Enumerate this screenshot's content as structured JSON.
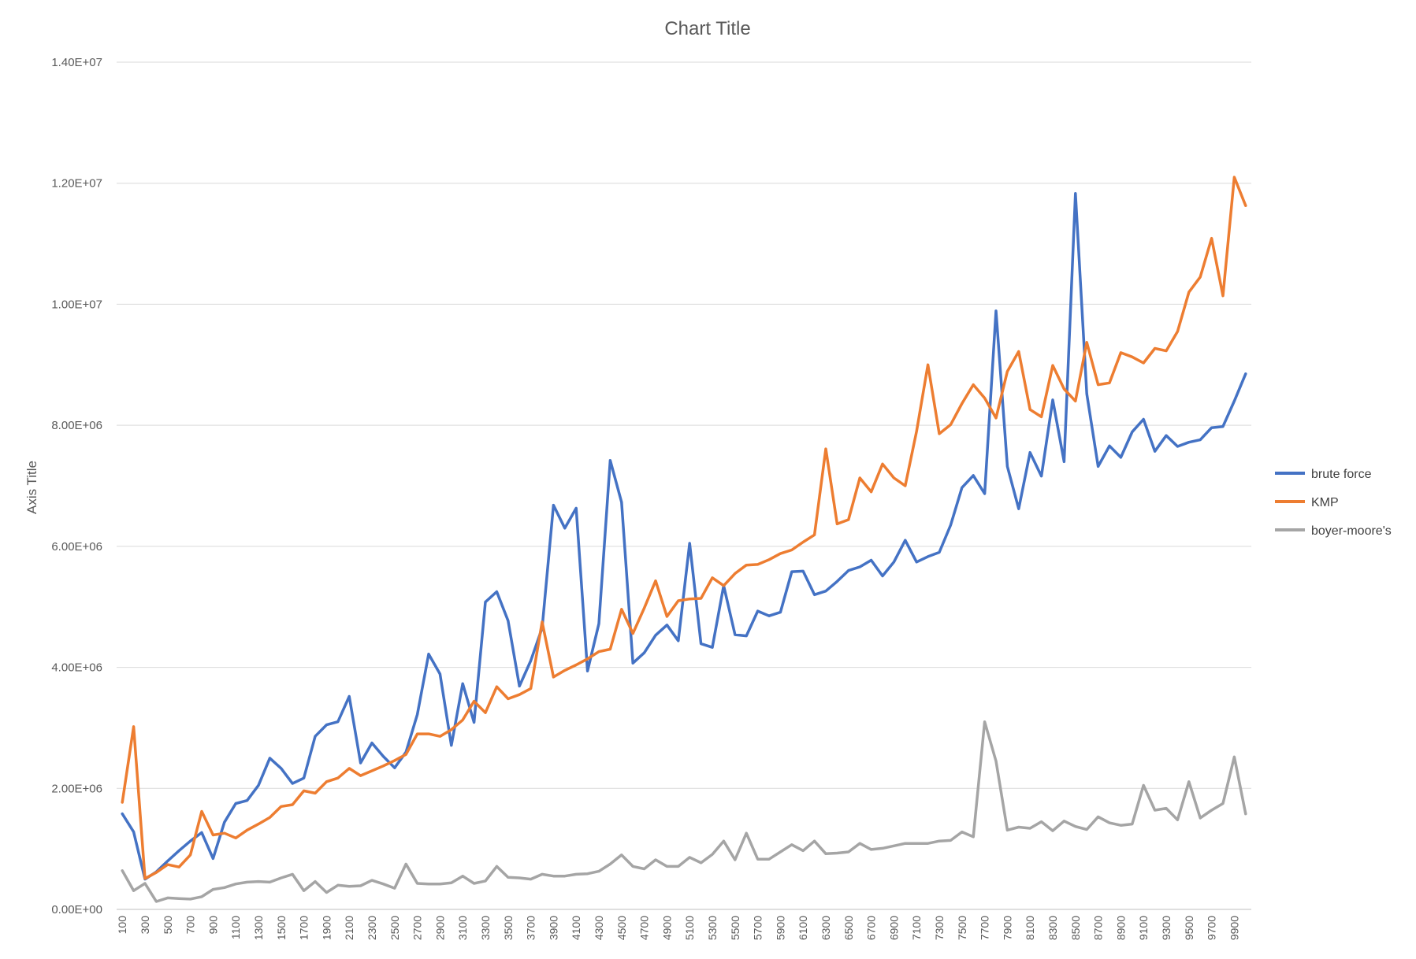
{
  "chart_data": {
    "type": "line",
    "title": "Chart Title",
    "ylabel": "Axis Title",
    "xlabel": "",
    "ylim": [
      0,
      14000000
    ],
    "yticks": [
      "0.00E+00",
      "2.00E+06",
      "4.00E+06",
      "6.00E+06",
      "8.00E+06",
      "1.00E+07",
      "1.20E+07",
      "1.40E+07"
    ],
    "grid": true,
    "legend_position": "right",
    "x": [
      100,
      200,
      300,
      400,
      500,
      600,
      700,
      800,
      900,
      1000,
      1100,
      1200,
      1300,
      1400,
      1500,
      1600,
      1700,
      1800,
      1900,
      2000,
      2100,
      2200,
      2300,
      2400,
      2500,
      2600,
      2700,
      2800,
      2900,
      3000,
      3100,
      3200,
      3300,
      3400,
      3500,
      3600,
      3700,
      3800,
      3900,
      4000,
      4100,
      4200,
      4300,
      4400,
      4500,
      4600,
      4700,
      4800,
      4900,
      5000,
      5100,
      5200,
      5300,
      5400,
      5500,
      5600,
      5700,
      5800,
      5900,
      6000,
      6100,
      6200,
      6300,
      6400,
      6500,
      6600,
      6700,
      6800,
      6900,
      7000,
      7100,
      7200,
      7300,
      7400,
      7500,
      7600,
      7700,
      7800,
      7900,
      8000,
      8100,
      8200,
      8300,
      8400,
      8500,
      8600,
      8700,
      8800,
      8900,
      9000,
      9100,
      9200,
      9300,
      9400,
      9500,
      9600,
      9700,
      9800,
      9900,
      10000
    ],
    "x_tick_labels": [
      "100",
      "300",
      "500",
      "700",
      "900",
      "1100",
      "1300",
      "1500",
      "1700",
      "1900",
      "2100",
      "2300",
      "2500",
      "2700",
      "2900",
      "3100",
      "3300",
      "3500",
      "3700",
      "3900",
      "4100",
      "4300",
      "4500",
      "4700",
      "4900",
      "5100",
      "5300",
      "5500",
      "5700",
      "5900",
      "6100",
      "6300",
      "6500",
      "6700",
      "6900",
      "7100",
      "7300",
      "7500",
      "7700",
      "7900",
      "8100",
      "8300",
      "8500",
      "8700",
      "8900",
      "9100",
      "9300",
      "9500",
      "9700",
      "9900"
    ],
    "series": [
      {
        "name": "brute force",
        "color": "#4472C4",
        "values": [
          1580000,
          1280000,
          500000,
          620000,
          800000,
          970000,
          1130000,
          1270000,
          840000,
          1440000,
          1750000,
          1800000,
          2050000,
          2500000,
          2330000,
          2080000,
          2170000,
          2860000,
          3050000,
          3100000,
          3520000,
          2420000,
          2750000,
          2530000,
          2340000,
          2600000,
          3220000,
          4220000,
          3890000,
          2710000,
          3730000,
          3090000,
          5080000,
          5250000,
          4770000,
          3690000,
          4110000,
          4650000,
          6680000,
          6300000,
          6630000,
          3940000,
          4720000,
          7420000,
          6730000,
          4070000,
          4240000,
          4530000,
          4700000,
          4440000,
          6050000,
          4390000,
          4330000,
          5350000,
          4540000,
          4520000,
          4930000,
          4850000,
          4910000,
          5580000,
          5590000,
          5200000,
          5260000,
          5420000,
          5600000,
          5660000,
          5770000,
          5510000,
          5740000,
          6100000,
          5740000,
          5830000,
          5900000,
          6350000,
          6970000,
          7170000,
          6870000,
          9890000,
          7320000,
          6620000,
          7550000,
          7160000,
          8420000,
          7400000,
          11830000,
          8520000,
          7320000,
          7660000,
          7470000,
          7890000,
          8100000,
          7570000,
          7830000,
          7650000,
          7720000,
          7760000,
          7960000,
          7980000,
          8400000,
          8850000
        ]
      },
      {
        "name": "KMP",
        "color": "#ED7D31",
        "values": [
          1770000,
          3020000,
          510000,
          610000,
          740000,
          700000,
          900000,
          1620000,
          1230000,
          1260000,
          1180000,
          1310000,
          1410000,
          1520000,
          1700000,
          1730000,
          1960000,
          1920000,
          2110000,
          2170000,
          2330000,
          2210000,
          2290000,
          2370000,
          2460000,
          2560000,
          2900000,
          2900000,
          2860000,
          2970000,
          3130000,
          3440000,
          3250000,
          3680000,
          3480000,
          3550000,
          3650000,
          4750000,
          3840000,
          3950000,
          4040000,
          4140000,
          4260000,
          4300000,
          4960000,
          4560000,
          4980000,
          5430000,
          4840000,
          5100000,
          5130000,
          5140000,
          5480000,
          5350000,
          5550000,
          5690000,
          5700000,
          5780000,
          5880000,
          5940000,
          6070000,
          6190000,
          7610000,
          6370000,
          6440000,
          7130000,
          6900000,
          7360000,
          7130000,
          7000000,
          7900000,
          9000000,
          7860000,
          8010000,
          8360000,
          8670000,
          8450000,
          8120000,
          8890000,
          9220000,
          8260000,
          8140000,
          8990000,
          8600000,
          8400000,
          9370000,
          8670000,
          8700000,
          9200000,
          9130000,
          9030000,
          9270000,
          9230000,
          9550000,
          10200000,
          10450000,
          11090000,
          10140000,
          12100000,
          11630000
        ]
      },
      {
        "name": "boyer-moore's",
        "color": "#A5A5A5",
        "values": [
          640000,
          310000,
          430000,
          130000,
          190000,
          180000,
          170000,
          210000,
          330000,
          360000,
          420000,
          450000,
          460000,
          450000,
          520000,
          580000,
          310000,
          460000,
          280000,
          400000,
          380000,
          390000,
          480000,
          420000,
          350000,
          750000,
          430000,
          420000,
          420000,
          440000,
          550000,
          430000,
          470000,
          710000,
          530000,
          520000,
          500000,
          580000,
          550000,
          550000,
          580000,
          590000,
          630000,
          750000,
          900000,
          710000,
          670000,
          820000,
          710000,
          710000,
          860000,
          770000,
          910000,
          1130000,
          820000,
          1260000,
          830000,
          830000,
          950000,
          1070000,
          970000,
          1130000,
          920000,
          930000,
          950000,
          1090000,
          990000,
          1010000,
          1050000,
          1090000,
          1090000,
          1090000,
          1130000,
          1140000,
          1280000,
          1200000,
          3100000,
          2450000,
          1310000,
          1360000,
          1340000,
          1450000,
          1300000,
          1460000,
          1370000,
          1320000,
          1530000,
          1430000,
          1390000,
          1410000,
          2050000,
          1640000,
          1670000,
          1480000,
          2110000,
          1510000,
          1640000,
          1750000,
          2520000,
          1580000
        ]
      }
    ]
  }
}
